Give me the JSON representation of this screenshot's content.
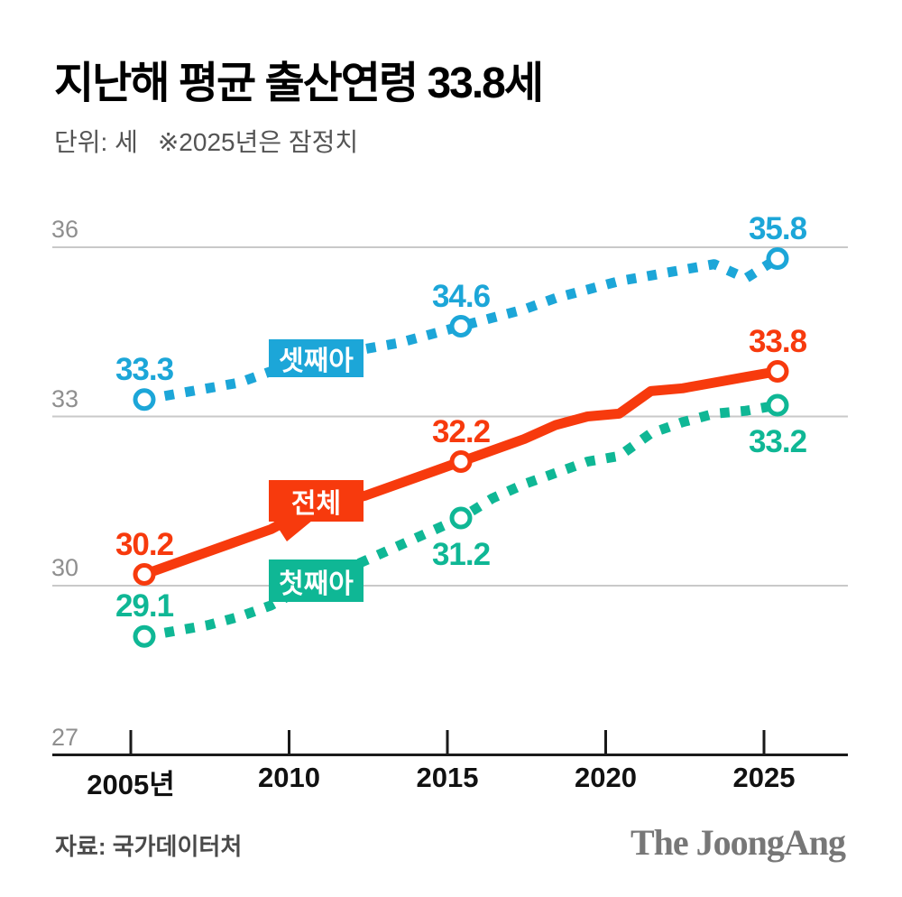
{
  "title": "지난해 평균 출산연령 33.8세",
  "subtitle": {
    "unit": "단위: 세",
    "note": "※2025년은 잠정치"
  },
  "footer": {
    "source": "자료: 국가데이터처",
    "logo": "The JoongAng"
  },
  "colors": {
    "third_child": "#1CA6D8",
    "total": "#F73A0D",
    "first_child": "#0FB795",
    "grid": "#C9C9C9",
    "axis": "#1A1A1A",
    "y_label": "#8F8F8F",
    "x_label": "#111111"
  },
  "chart_data": {
    "type": "line",
    "title": "지난해 평균 출산연령 33.8세",
    "unit": "세",
    "note": "2025년은 잠정치(provisional)",
    "x_start": 2005,
    "x_years": [
      2005,
      2006,
      2007,
      2008,
      2009,
      2010,
      2011,
      2012,
      2013,
      2014,
      2015,
      2016,
      2017,
      2018,
      2019,
      2020,
      2021,
      2022,
      2023,
      2024,
      2025
    ],
    "xticks": [
      {
        "year": 2005,
        "label": "2005년"
      },
      {
        "year": 2010,
        "label": "2010"
      },
      {
        "year": 2015,
        "label": "2015"
      },
      {
        "year": 2020,
        "label": "2020"
      },
      {
        "year": 2025,
        "label": "2025"
      }
    ],
    "yticks": [
      27,
      30,
      33,
      36
    ],
    "ylim": [
      27,
      36.6
    ],
    "grid": true,
    "legend_position": "inline-boxes-on-lines",
    "series": [
      {
        "key": "third",
        "name": "셋째아",
        "color": "#1CA6D8",
        "style": "dashed",
        "values": [
          33.3,
          33.4,
          33.5,
          33.6,
          33.8,
          33.9,
          34.05,
          34.2,
          34.3,
          34.45,
          34.6,
          34.75,
          34.9,
          35.1,
          35.25,
          35.4,
          35.5,
          35.6,
          35.7,
          35.45,
          35.8
        ],
        "point_labels": [
          {
            "year": 2005,
            "value": 33.3,
            "text": "33.3",
            "position": "above"
          },
          {
            "year": 2015,
            "value": 34.6,
            "text": "34.6",
            "position": "above"
          },
          {
            "year": 2025,
            "value": 35.8,
            "text": "35.8",
            "position": "above"
          }
        ]
      },
      {
        "key": "total",
        "name": "전체",
        "color": "#F73A0D",
        "style": "solid",
        "values": [
          30.2,
          30.4,
          30.6,
          30.8,
          31.0,
          31.3,
          31.45,
          31.6,
          31.8,
          32.0,
          32.2,
          32.4,
          32.6,
          32.85,
          33.0,
          33.05,
          33.45,
          33.5,
          33.6,
          33.7,
          33.8
        ],
        "point_labels": [
          {
            "year": 2005,
            "value": 30.2,
            "text": "30.2",
            "position": "above"
          },
          {
            "year": 2015,
            "value": 32.2,
            "text": "32.2",
            "position": "above"
          },
          {
            "year": 2025,
            "value": 33.8,
            "text": "33.8",
            "position": "above"
          }
        ]
      },
      {
        "key": "first",
        "name": "첫째아",
        "color": "#0FB795",
        "style": "dashed",
        "values": [
          29.1,
          29.2,
          29.3,
          29.45,
          29.65,
          29.95,
          30.2,
          30.45,
          30.7,
          30.95,
          31.2,
          31.55,
          31.8,
          32.0,
          32.2,
          32.3,
          32.7,
          32.9,
          33.05,
          33.1,
          33.2
        ],
        "point_labels": [
          {
            "year": 2005,
            "value": 29.1,
            "text": "29.1",
            "position": "above"
          },
          {
            "year": 2015,
            "value": 31.2,
            "text": "31.2",
            "position": "below"
          },
          {
            "year": 2025,
            "value": 33.2,
            "text": "33.2",
            "position": "below"
          }
        ]
      }
    ]
  }
}
